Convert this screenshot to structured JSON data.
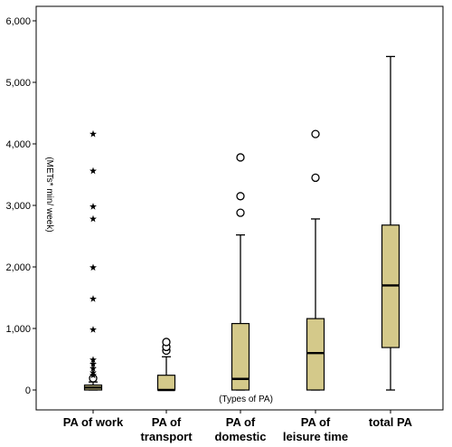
{
  "chart_data": {
    "type": "boxplot",
    "ylabel": "(METs* min/ week)",
    "xlabel": "(Types of PA)",
    "ylim": [
      0,
      6000
    ],
    "yticks": [
      0,
      1000,
      2000,
      3000,
      4000,
      5000,
      6000
    ],
    "ytick_labels": [
      "0",
      "1,000",
      "2,000",
      "3,000",
      "4,000",
      "5,000",
      "6,000"
    ],
    "grid": false,
    "box_color": "#d4c98a",
    "categories": [
      {
        "label_lines": [
          "PA of work"
        ],
        "min": 0,
        "q1": 0,
        "median": 40,
        "q3": 80,
        "max": 130,
        "outliers_circle": [
          190
        ],
        "outliers_star": [
          4160,
          3560,
          2980,
          2780,
          1990,
          1480,
          980,
          490,
          420,
          350,
          280,
          240
        ]
      },
      {
        "label_lines": [
          "PA of",
          "transport"
        ],
        "min": 0,
        "q1": 0,
        "median": 0,
        "q3": 240,
        "max": 540,
        "outliers_circle": [
          640,
          700,
          780
        ],
        "outliers_star": []
      },
      {
        "label_lines": [
          "PA of",
          "domestic"
        ],
        "min": 0,
        "q1": 0,
        "median": 180,
        "q3": 1080,
        "max": 2520,
        "outliers_circle": [
          2880,
          3150,
          3780
        ],
        "outliers_star": []
      },
      {
        "label_lines": [
          "PA of",
          "leisure time"
        ],
        "min": 0,
        "q1": 0,
        "median": 600,
        "q3": 1160,
        "max": 2780,
        "outliers_circle": [
          3450,
          4160
        ],
        "outliers_star": []
      },
      {
        "label_lines": [
          "total PA"
        ],
        "min": 0,
        "q1": 690,
        "median": 1700,
        "q3": 2680,
        "max": 5420,
        "outliers_circle": [],
        "outliers_star": []
      }
    ]
  }
}
